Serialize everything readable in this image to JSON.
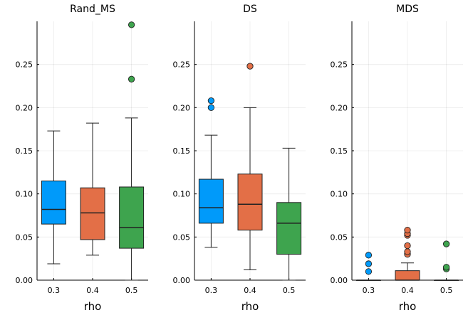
{
  "chart_data": [
    {
      "type": "box",
      "title": "Rand_MS",
      "xlabel": "rho",
      "categories": [
        "0.3",
        "0.4",
        "0.5"
      ],
      "ylim": [
        0,
        0.3
      ],
      "yticks": [
        "0.00",
        "0.05",
        "0.10",
        "0.15",
        "0.20",
        "0.25"
      ],
      "ytick_values": [
        0,
        0.05,
        0.1,
        0.15,
        0.2,
        0.25
      ],
      "grid": true,
      "boxes": [
        {
          "category": "0.3",
          "color": "#009AFA",
          "whisker_low": 0.019,
          "q1": 0.065,
          "median": 0.082,
          "q3": 0.115,
          "whisker_high": 0.173,
          "outliers": []
        },
        {
          "category": "0.4",
          "color": "#E36F47",
          "whisker_low": 0.029,
          "q1": 0.047,
          "median": 0.078,
          "q3": 0.107,
          "whisker_high": 0.182,
          "outliers": []
        },
        {
          "category": "0.5",
          "color": "#3EA44E",
          "whisker_low": 0.0,
          "q1": 0.037,
          "median": 0.061,
          "q3": 0.108,
          "whisker_high": 0.188,
          "outliers": [
            0.233,
            0.296
          ]
        }
      ]
    },
    {
      "type": "box",
      "title": "DS",
      "xlabel": "rho",
      "categories": [
        "0.3",
        "0.4",
        "0.5"
      ],
      "ylim": [
        0,
        0.3
      ],
      "yticks": [
        "0.00",
        "0.05",
        "0.10",
        "0.15",
        "0.20",
        "0.25"
      ],
      "ytick_values": [
        0,
        0.05,
        0.1,
        0.15,
        0.2,
        0.25
      ],
      "grid": true,
      "boxes": [
        {
          "category": "0.3",
          "color": "#009AFA",
          "whisker_low": 0.038,
          "q1": 0.066,
          "median": 0.084,
          "q3": 0.117,
          "whisker_high": 0.168,
          "outliers": [
            0.2,
            0.208
          ]
        },
        {
          "category": "0.4",
          "color": "#E36F47",
          "whisker_low": 0.012,
          "q1": 0.058,
          "median": 0.088,
          "q3": 0.123,
          "whisker_high": 0.2,
          "outliers": [
            0.248
          ]
        },
        {
          "category": "0.5",
          "color": "#3EA44E",
          "whisker_low": 0.0,
          "q1": 0.03,
          "median": 0.066,
          "q3": 0.09,
          "whisker_high": 0.153,
          "outliers": []
        }
      ]
    },
    {
      "type": "box",
      "title": "MDS",
      "xlabel": "rho",
      "categories": [
        "0.3",
        "0.4",
        "0.5"
      ],
      "ylim": [
        0,
        0.3
      ],
      "yticks": [
        "0.00",
        "0.05",
        "0.10",
        "0.15",
        "0.20",
        "0.25"
      ],
      "ytick_values": [
        0,
        0.05,
        0.1,
        0.15,
        0.2,
        0.25
      ],
      "grid": true,
      "boxes": [
        {
          "category": "0.3",
          "color": "#009AFA",
          "whisker_low": 0.0,
          "q1": 0.0,
          "median": 0.0,
          "q3": 0.0,
          "whisker_high": 0.0,
          "outliers": [
            0.01,
            0.019,
            0.029
          ]
        },
        {
          "category": "0.4",
          "color": "#E36F47",
          "whisker_low": 0.0,
          "q1": 0.0,
          "median": 0.0,
          "q3": 0.011,
          "whisker_high": 0.02,
          "outliers": [
            0.03,
            0.033,
            0.04,
            0.052,
            0.054,
            0.058
          ]
        },
        {
          "category": "0.5",
          "color": "#3EA44E",
          "whisker_low": 0.0,
          "q1": 0.0,
          "median": 0.0,
          "q3": 0.0,
          "whisker_high": 0.0,
          "outliers": [
            0.013,
            0.015,
            0.042
          ]
        }
      ]
    }
  ]
}
